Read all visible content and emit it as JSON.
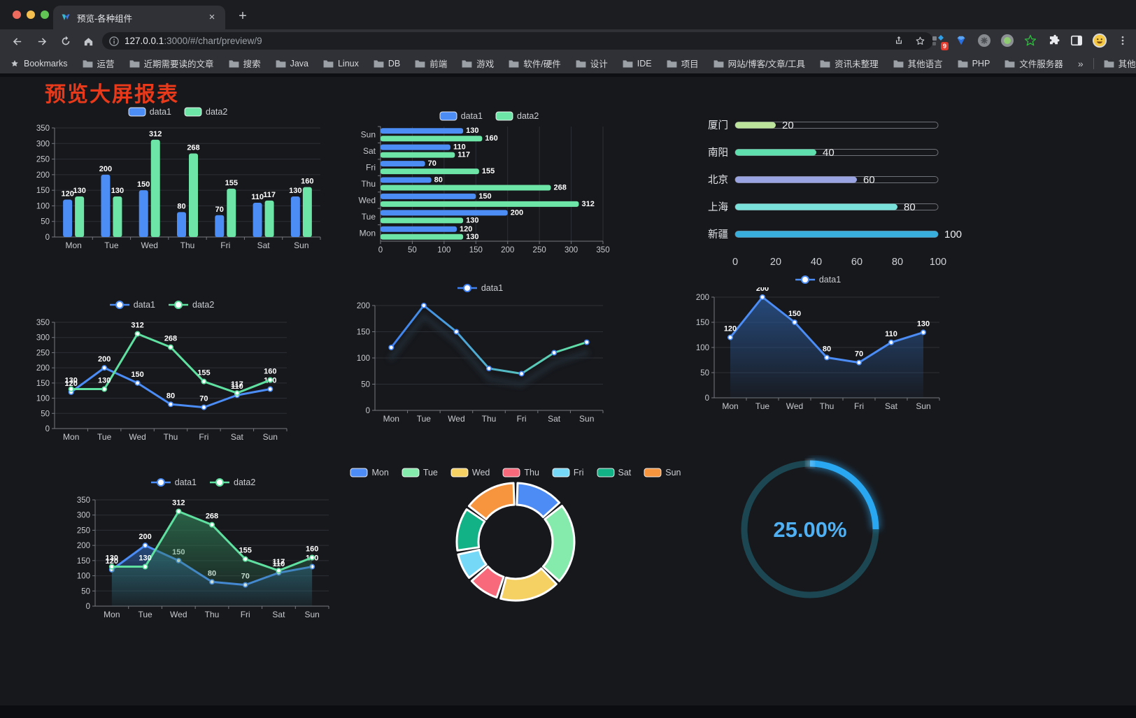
{
  "browser": {
    "tab": {
      "title": "预览-各种组件",
      "close_label": "×",
      "new_tab_label": "+"
    },
    "url": {
      "host": "127.0.0.1",
      "rest": ":3000/#/chart/preview/9"
    },
    "bookmarks": {
      "label": "Bookmarks",
      "folders": [
        "运营",
        "近期需要读的文章",
        "搜索",
        "Java",
        "Linux",
        "DB",
        "前端",
        "游戏",
        "软件/硬件",
        "设计",
        "IDE",
        "项目",
        "网站/博客/文章/工具",
        "资讯未整理",
        "其他语言",
        "PHP",
        "文件服务器"
      ],
      "overflow": "»",
      "other_bookmarks": "其他书签"
    },
    "extension_badge": "9"
  },
  "page": {
    "title": "预览大屏报表",
    "title_color": "#e8391a"
  },
  "chart_data": [
    {
      "id": "bar-grouped",
      "type": "bar",
      "orientation": "vertical",
      "categories": [
        "Mon",
        "Tue",
        "Wed",
        "Thu",
        "Fri",
        "Sat",
        "Sun"
      ],
      "series": [
        {
          "name": "data1",
          "color": "#4b8cf5",
          "values": [
            120,
            200,
            150,
            80,
            70,
            110,
            130
          ]
        },
        {
          "name": "data2",
          "color": "#6ce5a7",
          "values": [
            130,
            130,
            312,
            268,
            155,
            117,
            160
          ]
        }
      ],
      "ylim": [
        0,
        350
      ],
      "ytick_step": 50,
      "grid": true,
      "legend_position": "top",
      "value_labels": true
    },
    {
      "id": "bar-horizontal",
      "type": "bar",
      "orientation": "horizontal",
      "categories": [
        "Mon",
        "Tue",
        "Wed",
        "Thu",
        "Fri",
        "Sat",
        "Sun"
      ],
      "display_order_top_to_bottom": [
        "Sun",
        "Sat",
        "Fri",
        "Thu",
        "Wed",
        "Tue",
        "Mon"
      ],
      "series": [
        {
          "name": "data1",
          "color": "#4b8cf5",
          "values": [
            120,
            200,
            150,
            80,
            70,
            110,
            130
          ]
        },
        {
          "name": "data2",
          "color": "#6ce5a7",
          "values": [
            130,
            130,
            312,
            268,
            155,
            117,
            160
          ]
        }
      ],
      "xlim": [
        0,
        350
      ],
      "xtick_step": 50,
      "grid": true,
      "legend_position": "top",
      "value_labels": true
    },
    {
      "id": "progress",
      "type": "bar",
      "subtype": "progress-pills",
      "orientation": "horizontal",
      "categories": [
        "厦门",
        "南阳",
        "北京",
        "上海",
        "新疆"
      ],
      "values": [
        20,
        40,
        60,
        80,
        100
      ],
      "colors": [
        "#bde49b",
        "#5fdfae",
        "#9ba4e3",
        "#79e0da",
        "#38aedd"
      ],
      "xlim": [
        0,
        100
      ],
      "xticks": [
        0,
        20,
        40,
        60,
        80,
        100
      ],
      "value_labels": true
    },
    {
      "id": "line-two",
      "type": "line",
      "categories": [
        "Mon",
        "Tue",
        "Wed",
        "Thu",
        "Fri",
        "Sat",
        "Sun"
      ],
      "series": [
        {
          "name": "data1",
          "color": "#4b8cf5",
          "values": [
            120,
            200,
            150,
            80,
            70,
            110,
            130
          ]
        },
        {
          "name": "data2",
          "color": "#5fe0a0",
          "values": [
            130,
            130,
            312,
            268,
            155,
            117,
            160
          ]
        }
      ],
      "ylim": [
        0,
        350
      ],
      "ytick_step": 50,
      "grid": true,
      "legend_position": "top",
      "value_labels": true
    },
    {
      "id": "line-gradient",
      "type": "line",
      "categories": [
        "Mon",
        "Tue",
        "Wed",
        "Thu",
        "Fri",
        "Sat",
        "Sun"
      ],
      "series": [
        {
          "name": "data1",
          "color": "#3f80f2",
          "gradient_to": "#62e3a3",
          "values": [
            120,
            200,
            150,
            80,
            70,
            110,
            130
          ]
        }
      ],
      "ylim": [
        0,
        200
      ],
      "ytick_step": 50,
      "grid": true,
      "legend_position": "top",
      "value_labels": false
    },
    {
      "id": "area-single",
      "type": "area",
      "categories": [
        "Mon",
        "Tue",
        "Wed",
        "Thu",
        "Fri",
        "Sat",
        "Sun"
      ],
      "series": [
        {
          "name": "data1",
          "color": "#4b8cf5",
          "area": "#2b5a9a",
          "values": [
            120,
            200,
            150,
            80,
            70,
            110,
            130
          ]
        }
      ],
      "ylim": [
        0,
        200
      ],
      "ytick_step": 50,
      "grid": true,
      "legend_position": "top",
      "value_labels": true
    },
    {
      "id": "area-two",
      "type": "area",
      "categories": [
        "Mon",
        "Tue",
        "Wed",
        "Thu",
        "Fri",
        "Sat",
        "Sun"
      ],
      "series": [
        {
          "name": "data1",
          "color": "#4b8cf5",
          "area": "#2b5a9a",
          "values": [
            120,
            200,
            150,
            80,
            70,
            110,
            130
          ]
        },
        {
          "name": "data2",
          "color": "#5fe0a0",
          "area": "#2f7a54",
          "values": [
            130,
            130,
            312,
            268,
            155,
            117,
            160
          ]
        }
      ],
      "ylim": [
        0,
        350
      ],
      "ytick_step": 50,
      "grid": true,
      "legend_position": "top",
      "value_labels": true
    },
    {
      "id": "donut",
      "type": "pie",
      "style": "donut",
      "categories": [
        "Mon",
        "Tue",
        "Wed",
        "Thu",
        "Fri",
        "Sat",
        "Sun"
      ],
      "values": [
        120,
        200,
        150,
        80,
        70,
        110,
        130
      ],
      "colors": [
        "#4e8cf5",
        "#85ebac",
        "#f5d164",
        "#f7697b",
        "#76d8f7",
        "#12b286",
        "#f7953f"
      ],
      "legend_position": "top"
    },
    {
      "id": "gauge",
      "type": "gauge",
      "value": 25,
      "display": "25.00%",
      "min": 0,
      "max": 100,
      "color": "#2aa7f1",
      "track_color": "#1c4752",
      "text_color": "#4fb0f3"
    }
  ]
}
